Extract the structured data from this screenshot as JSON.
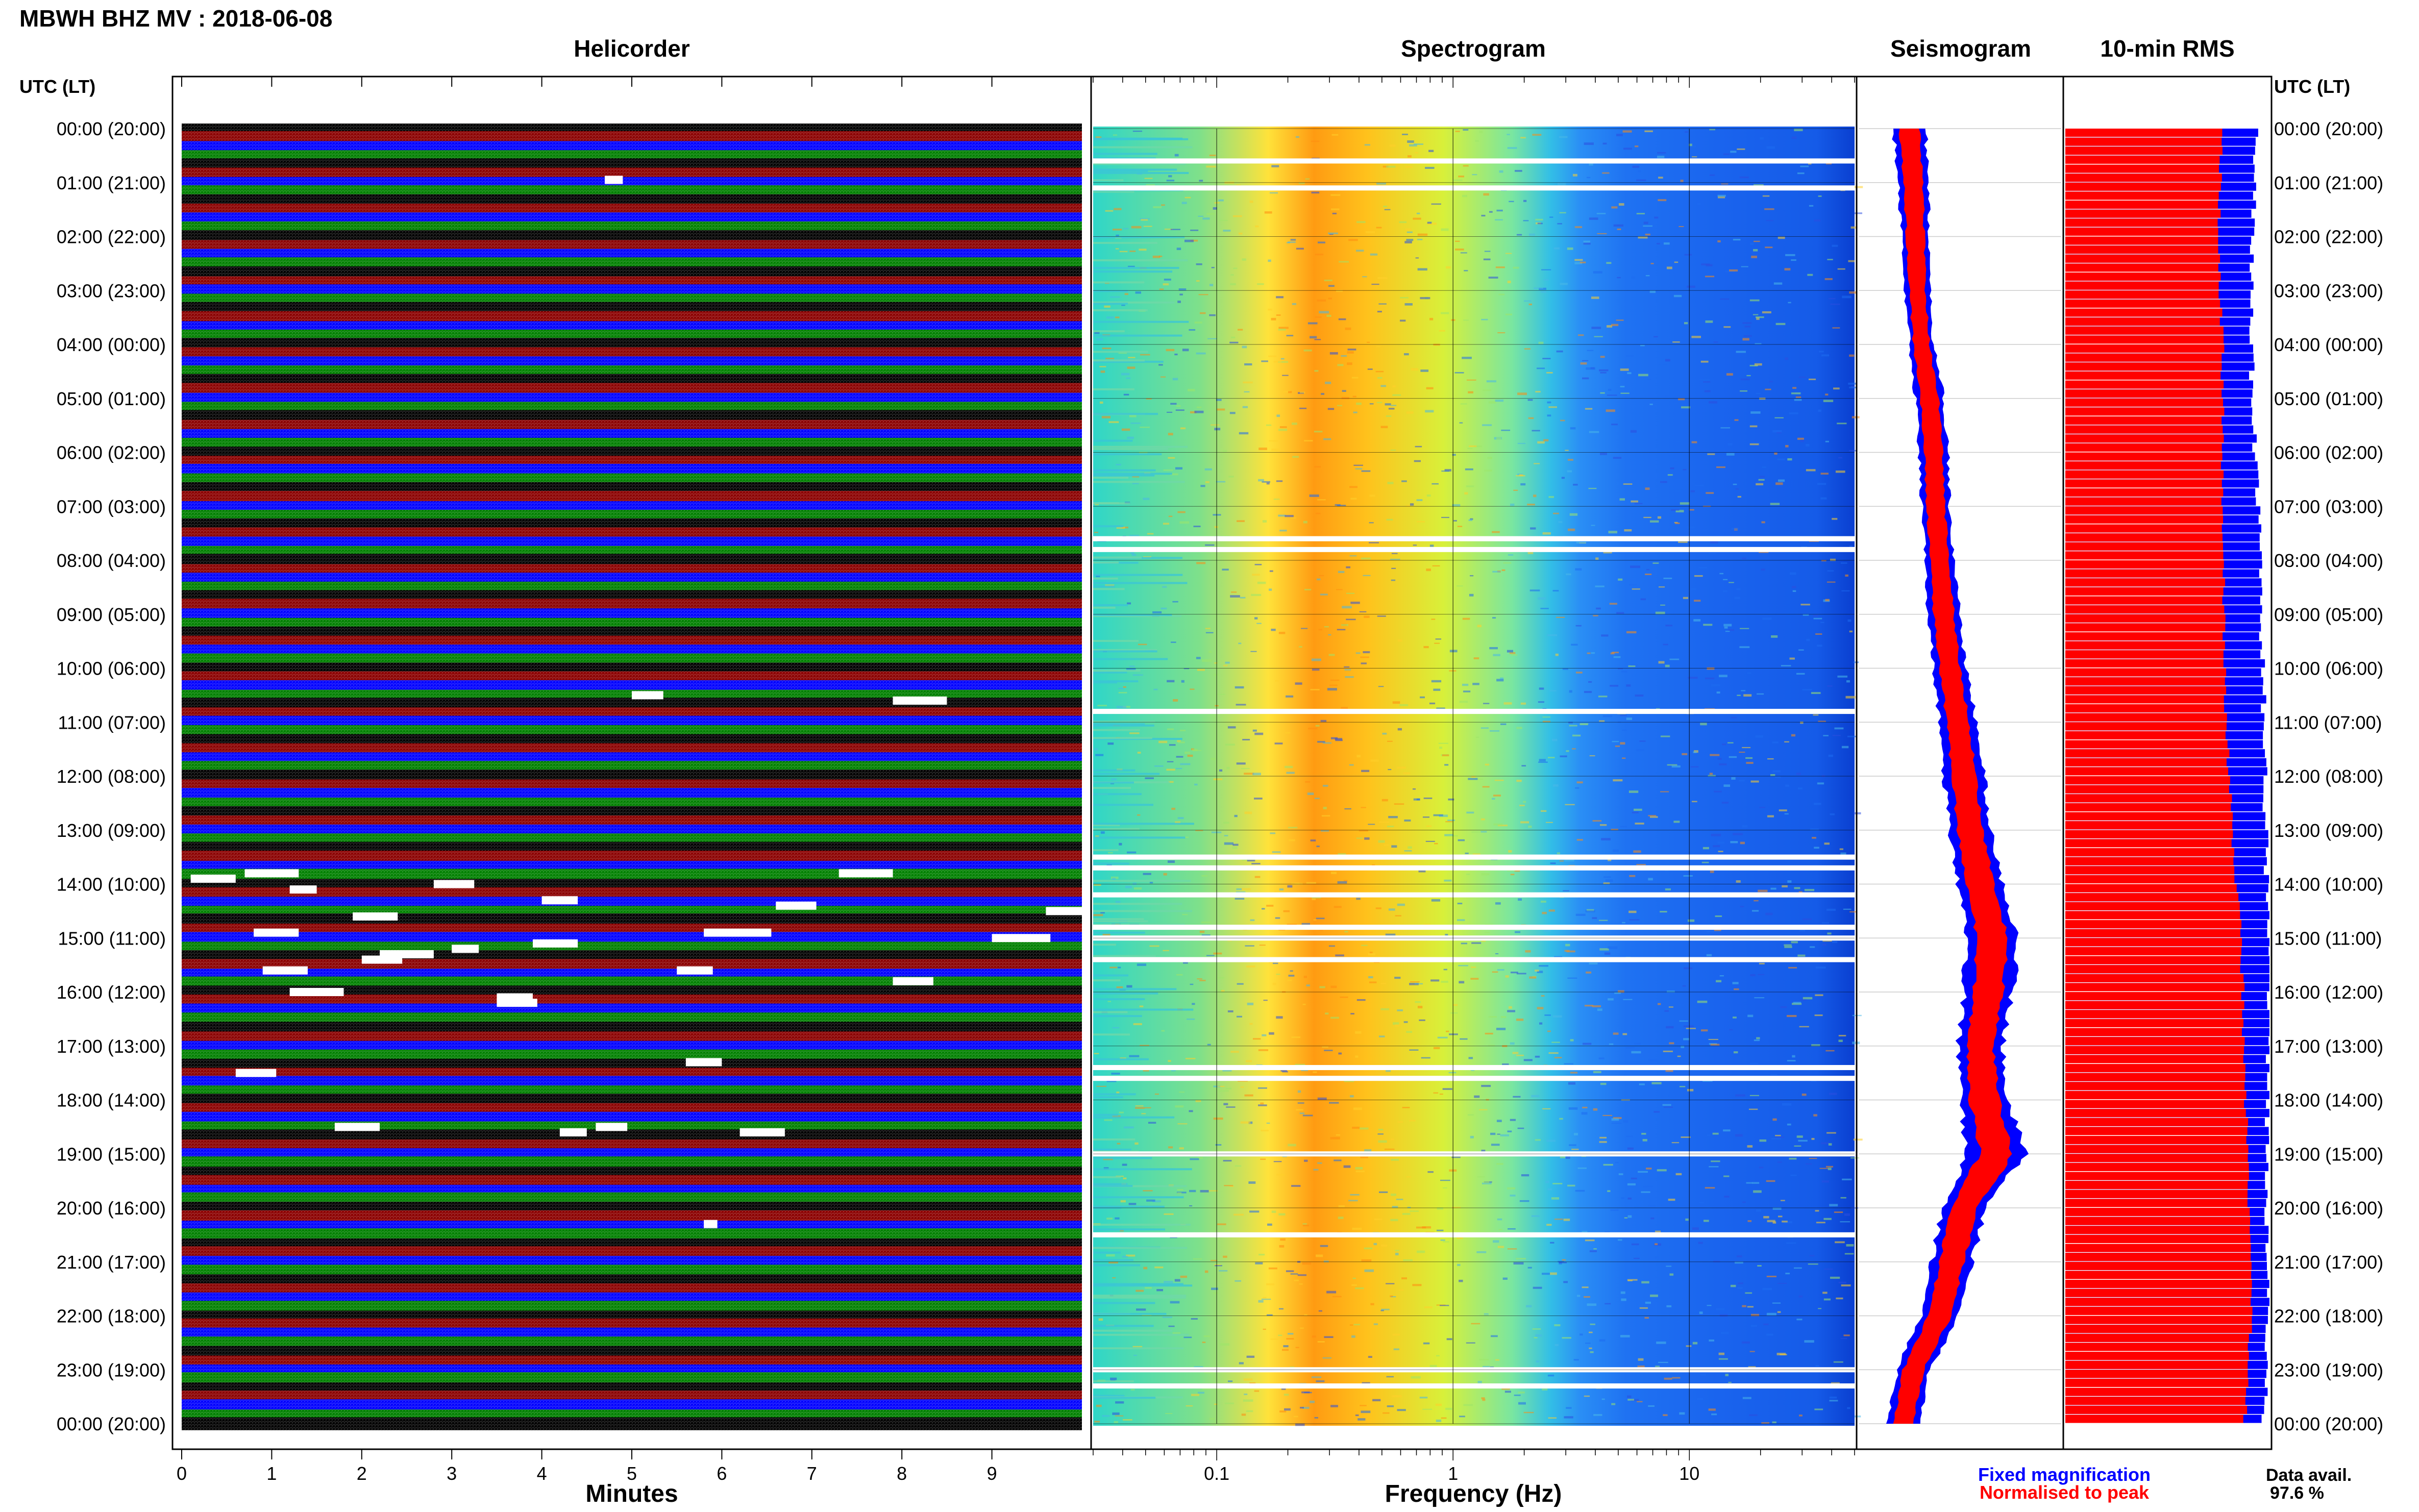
{
  "header": {
    "title": "MBWH BHZ MV : 2018-06-08"
  },
  "panels": {
    "helicorder": "Helicorder",
    "spectrogram": "Spectrogram",
    "seismogram": "Seismogram",
    "rms": "10-min RMS"
  },
  "time_axis_label": "UTC (LT)",
  "footer": {
    "fixed": "Fixed magnification",
    "normalised": "Normalised to peak",
    "avail_label": "Data avail.",
    "avail_value": "97.6 %"
  },
  "colors": {
    "helicorder_traces": [
      "#000000",
      "#8b0000",
      "#0000ff",
      "#008000"
    ],
    "fixed_magnification": "#0000ff",
    "normalised_to_peak": "#ff0000"
  },
  "chart_data": [
    {
      "type": "line",
      "panel": "Helicorder",
      "xlabel": "Minutes",
      "xticks": [
        0,
        1,
        2,
        3,
        4,
        5,
        6,
        7,
        8,
        9
      ],
      "xlim": [
        0,
        10
      ],
      "ylabel": "UTC (LT)",
      "yticks": [
        "00:00 (20:00)",
        "01:00 (21:00)",
        "02:00 (22:00)",
        "03:00 (23:00)",
        "04:00 (00:00)",
        "05:00 (01:00)",
        "06:00 (02:00)",
        "07:00 (03:00)",
        "08:00 (04:00)",
        "09:00 (05:00)",
        "10:00 (06:00)",
        "11:00 (07:00)",
        "12:00 (08:00)",
        "13:00 (09:00)",
        "14:00 (10:00)",
        "15:00 (11:00)",
        "16:00 (12:00)",
        "17:00 (13:00)",
        "18:00 (14:00)",
        "19:00 (15:00)",
        "20:00 (16:00)",
        "21:00 (17:00)",
        "22:00 (18:00)",
        "23:00 (19:00)",
        "00:00 (20:00)"
      ],
      "rows_per_hour": 6,
      "trace_colors": [
        "black",
        "darkred",
        "blue",
        "green"
      ]
    },
    {
      "type": "heatmap",
      "panel": "Spectrogram",
      "xlabel": "Frequency (Hz)",
      "xscale": "log",
      "xticks": [
        "0.1",
        "1",
        "10"
      ],
      "xlim": [
        0.03,
        50
      ],
      "peak_band_hz": [
        0.2,
        0.4
      ],
      "gap_rows_utc_hours": [
        0.6,
        1.1,
        7.6,
        7.8,
        10.8,
        13.5,
        13.7,
        14.2,
        14.8,
        15.0,
        15.4,
        17.4,
        17.6,
        19.0,
        20.5,
        23.0,
        23.3
      ]
    },
    {
      "type": "area",
      "panel": "Seismogram",
      "series": [
        {
          "name": "Fixed magnification",
          "hours": [
            0,
            1,
            2,
            3,
            4,
            5,
            6,
            7,
            8,
            9,
            10,
            11,
            12,
            13,
            14,
            15,
            16,
            17,
            18,
            19,
            20,
            21,
            22,
            23,
            24
          ],
          "center": [
            0.25,
            0.27,
            0.28,
            0.29,
            0.31,
            0.35,
            0.37,
            0.38,
            0.4,
            0.42,
            0.45,
            0.49,
            0.52,
            0.55,
            0.6,
            0.66,
            0.64,
            0.6,
            0.62,
            0.68,
            0.52,
            0.46,
            0.4,
            0.27,
            0.22
          ],
          "halfwidth": [
            0.08,
            0.07,
            0.07,
            0.06,
            0.06,
            0.07,
            0.07,
            0.07,
            0.07,
            0.08,
            0.08,
            0.09,
            0.1,
            0.1,
            0.11,
            0.13,
            0.12,
            0.11,
            0.12,
            0.14,
            0.11,
            0.1,
            0.09,
            0.08,
            0.08
          ]
        },
        {
          "name": "Normalised to peak",
          "hours": [
            0,
            1,
            2,
            3,
            4,
            5,
            6,
            7,
            8,
            9,
            10,
            11,
            12,
            13,
            14,
            15,
            16,
            17,
            18,
            19,
            20,
            21,
            22,
            23,
            24
          ],
          "center": [
            0.25,
            0.27,
            0.28,
            0.29,
            0.31,
            0.35,
            0.37,
            0.38,
            0.4,
            0.42,
            0.45,
            0.49,
            0.52,
            0.55,
            0.6,
            0.66,
            0.64,
            0.6,
            0.62,
            0.68,
            0.52,
            0.46,
            0.4,
            0.27,
            0.22
          ],
          "halfwidth": [
            0.05,
            0.045,
            0.045,
            0.04,
            0.04,
            0.045,
            0.045,
            0.045,
            0.045,
            0.05,
            0.05,
            0.055,
            0.06,
            0.06,
            0.065,
            0.075,
            0.07,
            0.065,
            0.07,
            0.08,
            0.065,
            0.06,
            0.055,
            0.05,
            0.05
          ]
        }
      ]
    },
    {
      "type": "bar",
      "panel": "10-min RMS",
      "orientation": "horizontal",
      "series": [
        {
          "name": "Fixed magnification",
          "values_hourly": [
            0.93,
            0.92,
            0.92,
            0.91,
            0.91,
            0.92,
            0.93,
            0.95,
            0.95,
            0.96,
            0.97,
            0.97,
            0.98,
            0.98,
            0.99,
            1.0,
            1.0,
            0.99,
            0.99,
            0.99,
            0.99,
            0.99,
            0.99,
            0.98,
            0.97
          ]
        },
        {
          "name": "Normalised to peak",
          "values_hourly": [
            0.76,
            0.76,
            0.75,
            0.76,
            0.77,
            0.77,
            0.77,
            0.77,
            0.77,
            0.78,
            0.78,
            0.79,
            0.8,
            0.82,
            0.84,
            0.86,
            0.87,
            0.87,
            0.88,
            0.9,
            0.9,
            0.91,
            0.91,
            0.89,
            0.88
          ]
        }
      ]
    }
  ]
}
